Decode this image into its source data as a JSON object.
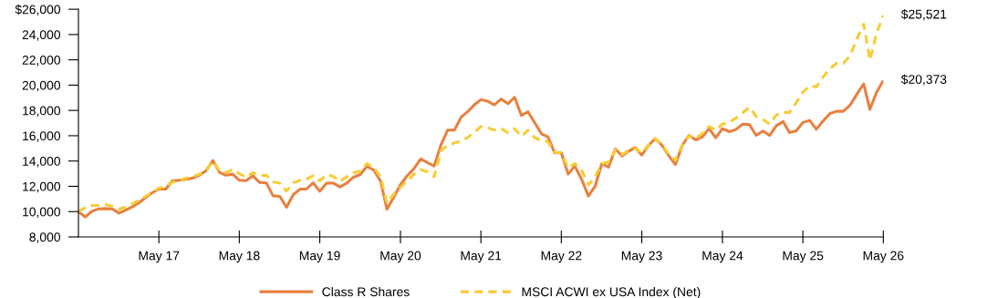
{
  "chart_data": {
    "type": "line",
    "x": [
      "2016-05",
      "2016-06",
      "2016-07",
      "2016-08",
      "2016-09",
      "2016-10",
      "2016-11",
      "2016-12",
      "2017-01",
      "2017-02",
      "2017-03",
      "2017-04",
      "2017-05",
      "2017-06",
      "2017-07",
      "2017-08",
      "2017-09",
      "2017-10",
      "2017-11",
      "2017-12",
      "2018-01",
      "2018-02",
      "2018-03",
      "2018-04",
      "2018-05",
      "2018-06",
      "2018-07",
      "2018-08",
      "2018-09",
      "2018-10",
      "2018-11",
      "2018-12",
      "2019-01",
      "2019-02",
      "2019-03",
      "2019-04",
      "2019-05",
      "2019-06",
      "2019-07",
      "2019-08",
      "2019-09",
      "2019-10",
      "2019-11",
      "2019-12",
      "2020-01",
      "2020-02",
      "2020-03",
      "2020-04",
      "2020-05",
      "2020-06",
      "2020-07",
      "2020-08",
      "2020-09",
      "2020-10",
      "2020-11",
      "2020-12",
      "2021-01",
      "2021-02",
      "2021-03",
      "2021-04",
      "2021-05",
      "2021-06",
      "2021-07",
      "2021-08",
      "2021-09",
      "2021-10",
      "2021-11",
      "2021-12",
      "2022-01",
      "2022-02",
      "2022-03",
      "2022-04",
      "2022-05",
      "2022-06",
      "2022-07",
      "2022-08",
      "2022-09",
      "2022-10",
      "2022-11",
      "2022-12",
      "2023-01",
      "2023-02",
      "2023-03",
      "2023-04",
      "2023-05",
      "2023-06",
      "2023-07",
      "2023-08",
      "2023-09",
      "2023-10",
      "2023-11",
      "2023-12",
      "2024-01",
      "2024-02",
      "2024-03",
      "2024-04",
      "2024-05",
      "2024-06",
      "2024-07",
      "2024-08",
      "2024-09",
      "2024-10",
      "2024-11",
      "2024-12",
      "2025-01",
      "2025-02",
      "2025-03",
      "2025-04",
      "2025-05",
      "2025-06",
      "2025-07",
      "2025-08",
      "2025-09",
      "2025-10",
      "2025-11",
      "2025-12",
      "2026-01",
      "2026-02",
      "2026-03",
      "2026-04",
      "2026-05"
    ],
    "series": [
      {
        "name": "Class R Shares",
        "color": "#e8803f",
        "line_style": "solid",
        "values": [
          10000,
          9570,
          10020,
          10220,
          10240,
          10220,
          9880,
          10120,
          10380,
          10720,
          11100,
          11490,
          11780,
          11780,
          12430,
          12480,
          12550,
          12640,
          12880,
          13240,
          14040,
          13080,
          12880,
          12960,
          12480,
          12450,
          12840,
          12310,
          12260,
          11250,
          11200,
          10340,
          11350,
          11780,
          11780,
          12280,
          11610,
          12240,
          12260,
          11950,
          12260,
          12720,
          12930,
          13580,
          13290,
          12400,
          10190,
          11150,
          12120,
          12840,
          13390,
          14160,
          13870,
          13610,
          15290,
          16440,
          16440,
          17480,
          17890,
          18440,
          18850,
          18730,
          18440,
          18900,
          18530,
          19040,
          17600,
          17890,
          17000,
          16130,
          15910,
          14640,
          14640,
          12960,
          13610,
          12550,
          11230,
          12000,
          13800,
          13510,
          14950,
          14400,
          14760,
          15070,
          14470,
          15240,
          15770,
          15240,
          14400,
          13730,
          15240,
          16030,
          15670,
          15910,
          16560,
          15840,
          16560,
          16320,
          16490,
          16920,
          16870,
          16030,
          16370,
          16030,
          16800,
          17120,
          16250,
          16390,
          17050,
          17210,
          16510,
          17160,
          17760,
          17930,
          17930,
          18410,
          19280,
          20100,
          18080,
          19450,
          20373
        ],
        "value_labels": [
          null,
          null,
          null,
          null,
          null,
          null,
          null,
          null,
          null,
          null,
          null,
          null,
          null,
          null,
          null,
          null,
          null,
          null,
          null,
          null,
          null,
          null,
          null,
          null,
          null,
          null,
          null,
          null,
          null,
          null,
          null,
          null,
          null,
          null,
          null,
          null,
          null,
          null,
          null,
          null,
          null,
          null,
          null,
          null,
          null,
          null,
          null,
          null,
          null,
          null,
          null,
          null,
          null,
          null,
          null,
          null,
          null,
          null,
          null,
          null,
          null,
          null,
          null,
          null,
          null,
          null,
          null,
          null,
          null,
          null,
          null,
          null,
          null,
          null,
          null,
          null,
          null,
          null,
          null,
          null,
          null,
          null,
          null,
          null,
          null,
          null,
          null,
          null,
          null,
          null,
          null,
          null,
          null,
          null,
          null,
          null,
          null,
          null,
          null,
          null,
          null,
          null,
          null,
          null,
          null,
          null,
          null,
          null,
          null,
          null,
          null,
          null,
          null,
          null,
          null,
          null,
          null,
          null,
          null,
          null,
          "$20,373"
        ]
      },
      {
        "name": "MSCI ACWI ex USA Index (Net)",
        "color": "#f7cc35",
        "line_style": "dashed",
        "values": [
          10000,
          10310,
          10480,
          10500,
          10550,
          10430,
          10190,
          10360,
          10620,
          10910,
          11200,
          11540,
          11850,
          12020,
          12310,
          12450,
          12640,
          12760,
          12960,
          13240,
          13990,
          13200,
          13080,
          13320,
          13000,
          12720,
          13080,
          12840,
          12880,
          12360,
          12240,
          11630,
          12280,
          12480,
          12550,
          12840,
          12430,
          12910,
          12790,
          12400,
          12760,
          13080,
          13200,
          13800,
          13510,
          12720,
          10670,
          11390,
          11920,
          12430,
          12960,
          13320,
          13130,
          12760,
          14830,
          15240,
          15430,
          15600,
          15840,
          16270,
          16730,
          16640,
          16440,
          16560,
          16250,
          16560,
          15960,
          16440,
          15840,
          15600,
          15530,
          14690,
          14640,
          13440,
          13800,
          13270,
          12120,
          12720,
          13800,
          13920,
          14880,
          14520,
          14830,
          15000,
          14640,
          15290,
          15770,
          15290,
          14520,
          14040,
          15290,
          16010,
          15770,
          16200,
          16730,
          16440,
          16920,
          17050,
          17400,
          17810,
          18250,
          17520,
          17280,
          16920,
          17640,
          17840,
          17840,
          18610,
          19450,
          19930,
          19860,
          20650,
          21300,
          21730,
          21730,
          22330,
          23650,
          24810,
          21970,
          24140,
          25521
        ],
        "value_labels": [
          null,
          null,
          null,
          null,
          null,
          null,
          null,
          null,
          null,
          null,
          null,
          null,
          null,
          null,
          null,
          null,
          null,
          null,
          null,
          null,
          null,
          null,
          null,
          null,
          null,
          null,
          null,
          null,
          null,
          null,
          null,
          null,
          null,
          null,
          null,
          null,
          null,
          null,
          null,
          null,
          null,
          null,
          null,
          null,
          null,
          null,
          null,
          null,
          null,
          null,
          null,
          null,
          null,
          null,
          null,
          null,
          null,
          null,
          null,
          null,
          null,
          null,
          null,
          null,
          null,
          null,
          null,
          null,
          null,
          null,
          null,
          null,
          null,
          null,
          null,
          null,
          null,
          null,
          null,
          null,
          null,
          null,
          null,
          null,
          null,
          null,
          null,
          null,
          null,
          null,
          null,
          null,
          null,
          null,
          null,
          null,
          null,
          null,
          null,
          null,
          null,
          null,
          null,
          null,
          null,
          null,
          null,
          null,
          null,
          null,
          null,
          null,
          null,
          null,
          null,
          null,
          null,
          null,
          null,
          null,
          "$25,521"
        ]
      }
    ],
    "xlim": [
      "2016-05",
      "2026-05"
    ],
    "xticks": [
      {
        "value": "2017-05",
        "label": "May 17"
      },
      {
        "value": "2018-05",
        "label": "May 18"
      },
      {
        "value": "2019-05",
        "label": "May 19"
      },
      {
        "value": "2020-05",
        "label": "May 20"
      },
      {
        "value": "2021-05",
        "label": "May 21"
      },
      {
        "value": "2022-05",
        "label": "May 22"
      },
      {
        "value": "2023-05",
        "label": "May 23"
      },
      {
        "value": "2024-05",
        "label": "May 24"
      },
      {
        "value": "2025-05",
        "label": "May 25"
      },
      {
        "value": "2026-05",
        "label": "May 26"
      }
    ],
    "ylim": [
      8000,
      26000
    ],
    "yticks": [
      {
        "value": 8000,
        "label": "8,000"
      },
      {
        "value": 10000,
        "label": "10,000"
      },
      {
        "value": 12000,
        "label": "12,000"
      },
      {
        "value": 14000,
        "label": "14,000"
      },
      {
        "value": 16000,
        "label": "16,000"
      },
      {
        "value": 18000,
        "label": "18,000"
      },
      {
        "value": 20000,
        "label": "20,000"
      },
      {
        "value": 22000,
        "label": "22,000"
      },
      {
        "value": 24000,
        "label": "24,000"
      },
      {
        "value": 26000,
        "label": "$26,000"
      }
    ],
    "grid": false,
    "legend": "bottom",
    "marker": "none"
  }
}
